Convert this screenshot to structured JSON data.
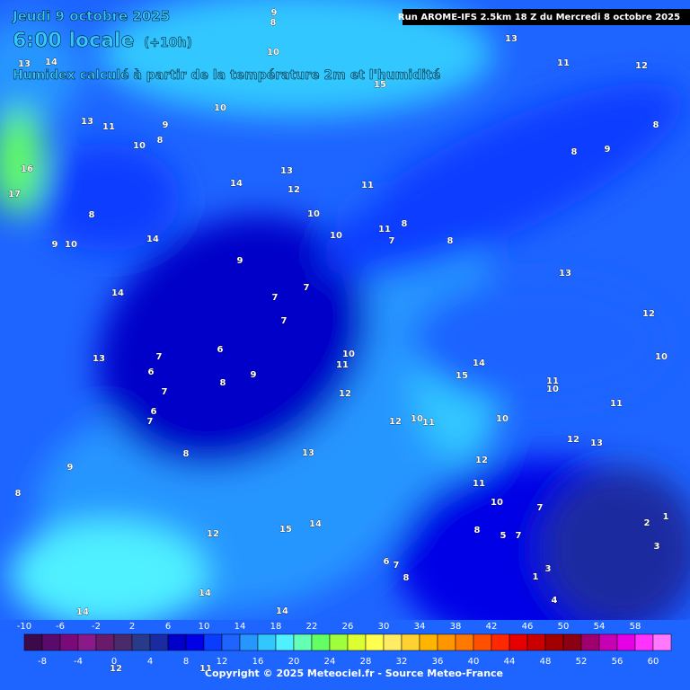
{
  "header": {
    "date": "Jeudi 9 octobre 2025",
    "time": "6:00 locale",
    "lead": "(+10h)",
    "subtitle": "Humidex calculé à partir de la température 2m et l'humidité",
    "run": "Run AROME-IFS 2.5km 18 Z du Mercredi 8 octobre 2025"
  },
  "map_labels": [
    9,
    8,
    10,
    13,
    11,
    12,
    13,
    14,
    15,
    10,
    9,
    8,
    10,
    11,
    13,
    8,
    8,
    9,
    13,
    14,
    12,
    11,
    10,
    10,
    11,
    8,
    7,
    8,
    8,
    9,
    10,
    14,
    16,
    17,
    9,
    13,
    14,
    7,
    7,
    7,
    12,
    6,
    7,
    10,
    11,
    13,
    6,
    9,
    8,
    7,
    14,
    15,
    11,
    10,
    10,
    12,
    6,
    7,
    11,
    12,
    10,
    11,
    10,
    12,
    13,
    8,
    13,
    12,
    9,
    8,
    11,
    10,
    7,
    8,
    5,
    7,
    2,
    1,
    3,
    12,
    15,
    14,
    6,
    7,
    8,
    3,
    1,
    4,
    14,
    14,
    14,
    12,
    11
  ],
  "colorbar": {
    "values": [
      -10,
      -8,
      -6,
      -4,
      -2,
      0,
      2,
      4,
      6,
      8,
      10,
      12,
      14,
      16,
      18,
      20,
      22,
      24,
      26,
      28,
      30,
      32,
      34,
      36,
      38,
      40,
      42,
      44,
      46,
      48,
      50,
      52,
      54,
      56,
      58,
      60
    ],
    "colors": [
      "#3c0a4a",
      "#5a0a6a",
      "#7a0a7a",
      "#8a1a8a",
      "#6a1a6a",
      "#4a2a6a",
      "#2a3a8a",
      "#1a2aa0",
      "#0000c8",
      "#0000e6",
      "#0a3cff",
      "#1e64ff",
      "#2896ff",
      "#32c8ff",
      "#50f0ff",
      "#64ffb4",
      "#64ff64",
      "#a0ff3c",
      "#dcff32",
      "#ffff50",
      "#ffeb64",
      "#ffd232",
      "#ffb400",
      "#ff9600",
      "#ff7800",
      "#ff5000",
      "#ff2800",
      "#e60000",
      "#c80000",
      "#a00000",
      "#8c0014",
      "#a0006e",
      "#c800b4",
      "#e600e6",
      "#ff32ff",
      "#ff78ff"
    ]
  },
  "footer": {
    "copyright": "Copyright © 2025 Meteociel.fr - Source Meteo-France"
  }
}
